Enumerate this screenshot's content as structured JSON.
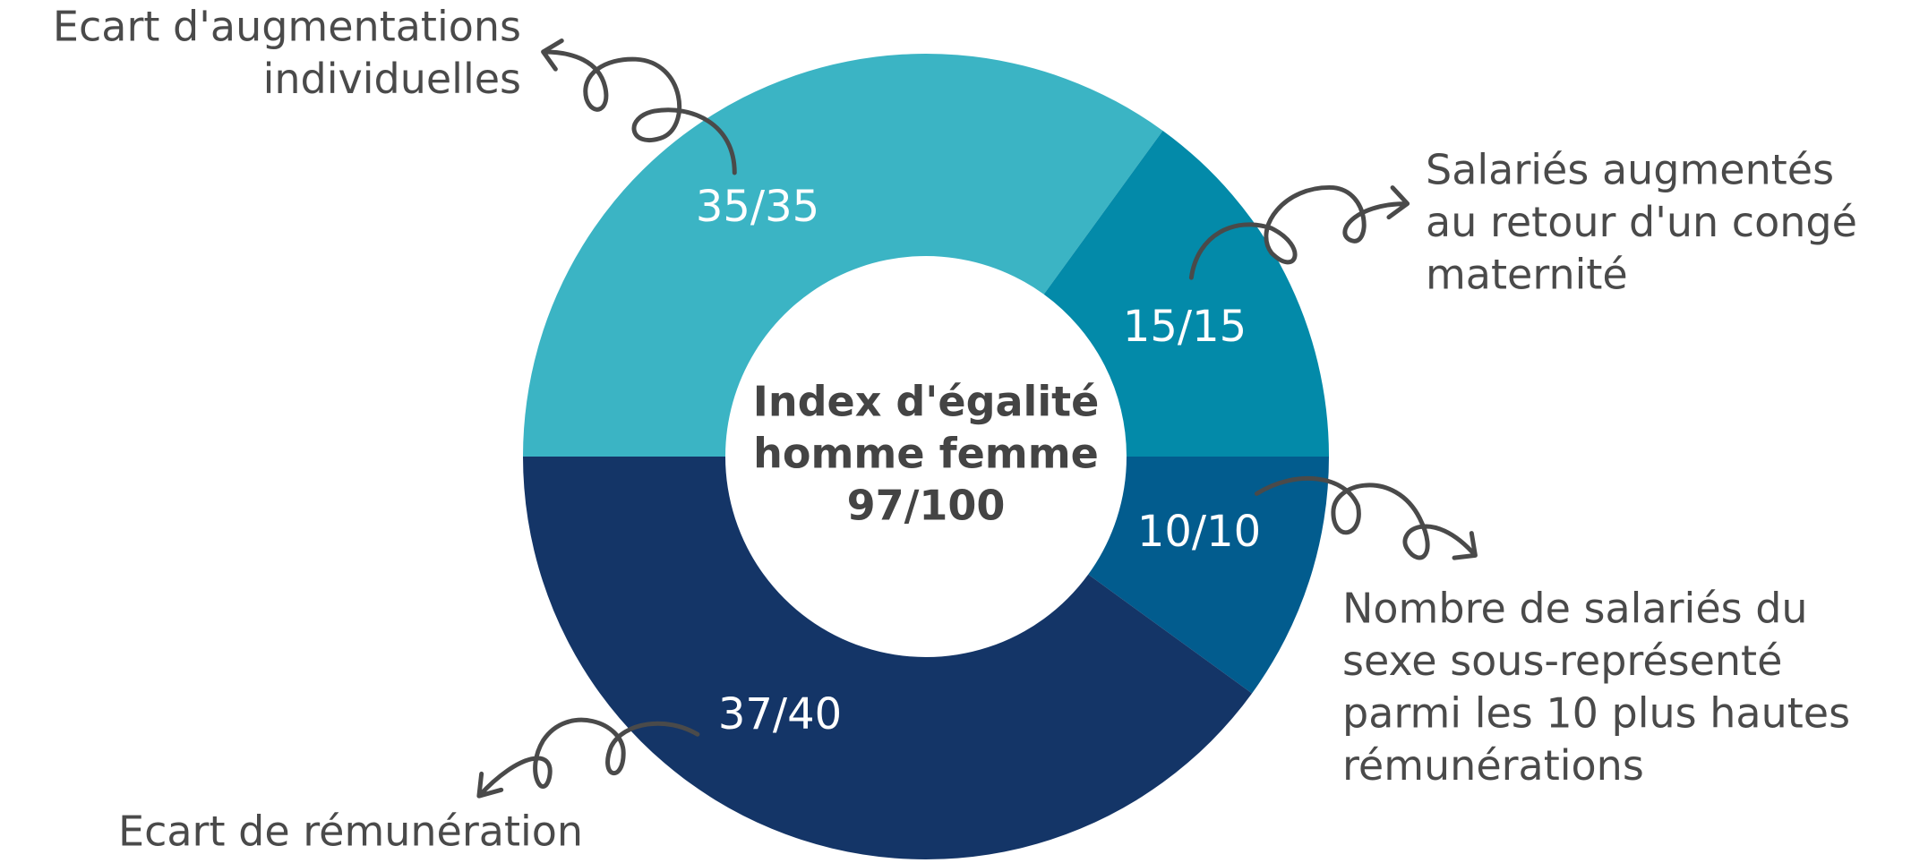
{
  "chart_data": {
    "type": "donut",
    "categories": [
      [
        "Ecart d'augmentations",
        "individuelles"
      ],
      [
        "Salariés augmentés",
        "au retour d'un congé",
        "maternité"
      ],
      [
        "Nombre de salariés du",
        "sexe sous-représenté",
        "parmi les 10 plus hautes",
        "rémunérations"
      ],
      [
        "Ecart de rémunération"
      ]
    ],
    "values": [
      35,
      15,
      10,
      37
    ],
    "max_values": [
      35,
      15,
      10,
      40
    ],
    "value_labels": [
      "35/35",
      "15/15",
      "10/10",
      "37/40"
    ],
    "colors": [
      "#3bb4c4",
      "#038aa9",
      "#025c8e",
      "#143567"
    ],
    "center_text": [
      "Index d'égalité",
      "homme femme",
      "97/100"
    ]
  }
}
